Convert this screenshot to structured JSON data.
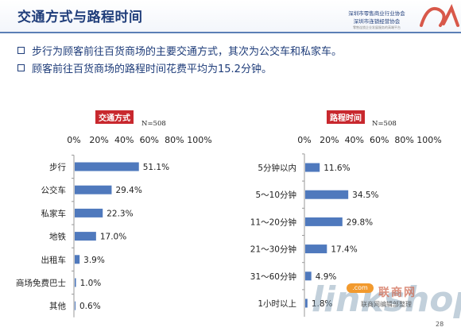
{
  "title": "交通方式与路程时间",
  "logo": {
    "line1": "深圳市零售商业行业协会",
    "line2": "深圳市连锁经营协会",
    "line3": "零售连锁企业发展服务的高端平台",
    "mark": "商人"
  },
  "bullets": [
    "步行为顾客前往百货商场的主要交通方式，其次为公交车和私家车。",
    "顾客前往百货商场的路程时间花费平均为15.2分钟。"
  ],
  "watermark": {
    "text": "linkshop",
    "cn": "联商网",
    "badge": ".com",
    "caption": "联商网编辑部整理"
  },
  "page_number": "28",
  "colors": {
    "bar": "#4f79bd",
    "tag": "#c8282e",
    "title": "#1f3d7a"
  },
  "chart_data": [
    {
      "type": "bar",
      "orientation": "horizontal",
      "title": "交通方式",
      "n_label": "N=508",
      "xlim": [
        0,
        100
      ],
      "tick_labels": [
        "0%",
        "20%",
        "40%",
        "60%",
        "80%",
        "100%"
      ],
      "categories": [
        "步行",
        "公交车",
        "私家车",
        "地铁",
        "出租车",
        "商场免费巴士",
        "其他"
      ],
      "values": [
        51.1,
        29.4,
        22.3,
        17.0,
        3.9,
        1.0,
        0.6
      ],
      "value_labels": [
        "51.1%",
        "29.4%",
        "22.3%",
        "17.0%",
        "3.9%",
        "1.0%",
        "0.6%"
      ]
    },
    {
      "type": "bar",
      "orientation": "horizontal",
      "title": "路程时间",
      "n_label": "N=508",
      "xlim": [
        0,
        100
      ],
      "tick_labels": [
        "0%",
        "20%",
        "40%",
        "60%",
        "80%",
        "100%"
      ],
      "categories": [
        "5分钟以内",
        "5～10分钟",
        "11～20分钟",
        "21～30分钟",
        "31～60分钟",
        "1小时以上"
      ],
      "values": [
        11.6,
        34.5,
        29.8,
        17.4,
        4.9,
        1.8
      ],
      "value_labels": [
        "11.6%",
        "34.5%",
        "29.8%",
        "17.4%",
        "4.9%",
        "1.8%"
      ]
    }
  ]
}
